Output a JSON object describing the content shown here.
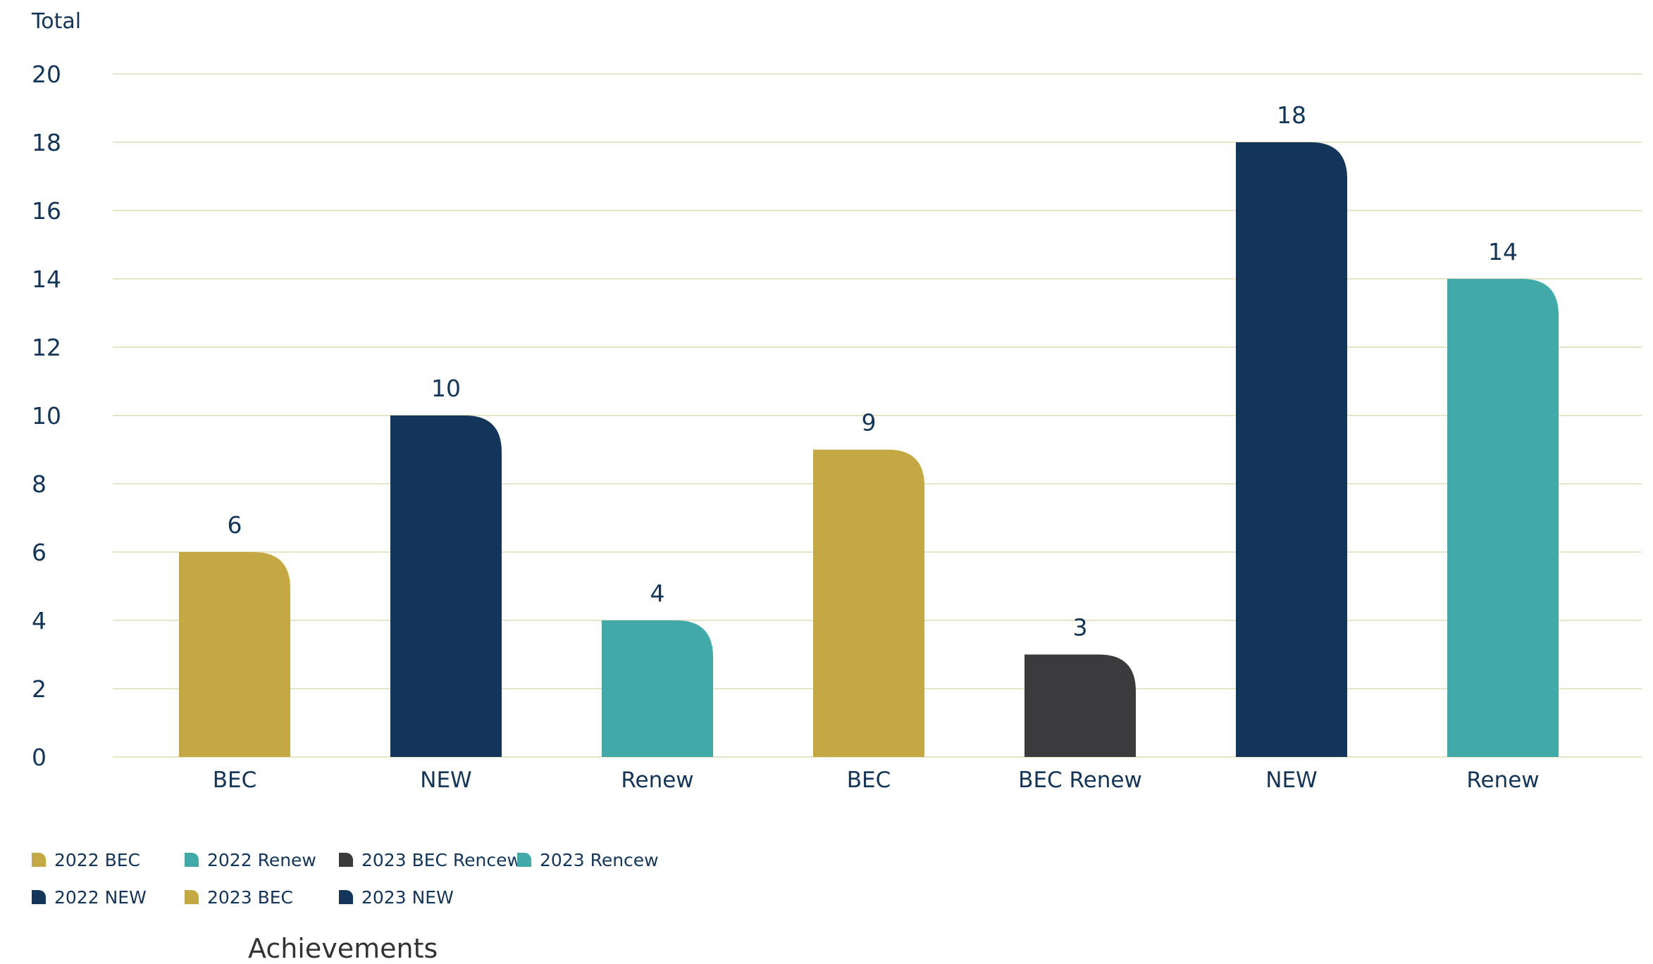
{
  "chart_data": {
    "type": "bar",
    "ylabel": "Total",
    "xlabel": "Achievements",
    "ylim": [
      0,
      20
    ],
    "yticks": [
      {
        "label": "20",
        "value": 20
      },
      {
        "label": "18",
        "value": 18
      },
      {
        "label": "16",
        "value": 16
      },
      {
        "label": "14",
        "value": 14
      },
      {
        "label": "12",
        "value": 12
      },
      {
        "label": "10",
        "value": 10
      },
      {
        "label": "8",
        "value": 8
      },
      {
        "label": "6",
        "value": 6
      },
      {
        "label": "4",
        "value": 4
      },
      {
        "label": "2",
        "value": 2
      },
      {
        "label": "0",
        "value": 0
      }
    ],
    "grid": true,
    "categories": [
      "BEC",
      "NEW",
      "Renew",
      "BEC",
      "BEC Renew",
      "NEW",
      "Renew"
    ],
    "values": [
      6,
      10,
      4,
      9,
      3,
      18,
      14
    ],
    "data_labels": [
      "6",
      "10",
      "4",
      "9",
      "3",
      "18",
      "14"
    ],
    "bar_colors": [
      "#c4a843",
      "#13355a",
      "#41aaa9",
      "#c4a843",
      "#3b3b3d",
      "#13355a",
      "#41aaa9"
    ],
    "legend_position": "bottom-left",
    "legend": [
      {
        "label": "2022 BEC",
        "color": "#c4a843"
      },
      {
        "label": "2022 Renew",
        "color": "#41aaa9"
      },
      {
        "label": "2023 BEC Rencew",
        "color": "#3b3b3d"
      },
      {
        "label": "2023 Rencew",
        "color": "#41aaa9"
      },
      {
        "label": "2022 NEW",
        "color": "#13355a"
      },
      {
        "label": "2023 BEC",
        "color": "#c4a843"
      },
      {
        "label": "2023 NEW",
        "color": "#13355a"
      }
    ]
  },
  "colors": {
    "grid": "#e8e4c8",
    "axis_text": "#13355a",
    "title_text": "#333333"
  }
}
